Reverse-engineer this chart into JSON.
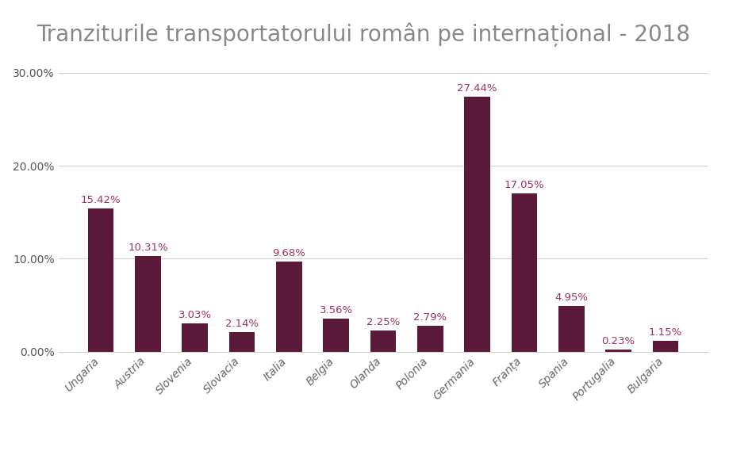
{
  "title": "Tranziturile transportatorului român pe internațional - 2018",
  "categories": [
    "Ungaria",
    "Austria",
    "Slovenia",
    "Slovacia",
    "Italia",
    "Belgia",
    "Olanda",
    "Polonia",
    "Germania",
    "Franța",
    "Spania",
    "Portugalia",
    "Bulgaria"
  ],
  "values": [
    15.42,
    10.31,
    3.03,
    2.14,
    9.68,
    3.56,
    2.25,
    2.79,
    27.44,
    17.05,
    4.95,
    0.23,
    1.15
  ],
  "bar_color": "#5c1a3a",
  "label_color": "#a03060",
  "background_color": "#ffffff",
  "grid_color": "#d0d0d0",
  "title_color": "#888888",
  "title_fontsize": 20,
  "label_fontsize": 9.5,
  "tick_fontsize": 10,
  "ytick_color": "#555555",
  "xtick_color": "#666666",
  "yticks": [
    0,
    10,
    20,
    30
  ],
  "ylim": [
    0,
    32
  ],
  "bar_width": 0.55
}
